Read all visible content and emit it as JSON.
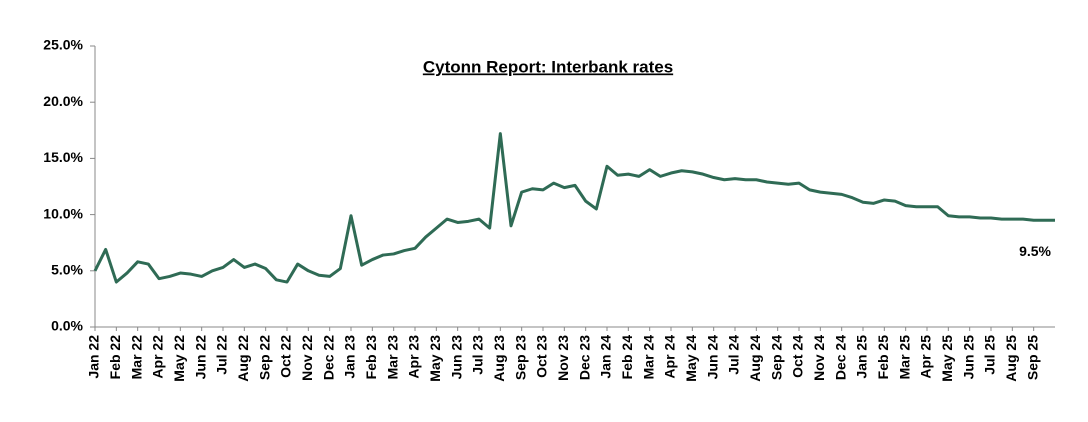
{
  "chart_data": {
    "type": "line",
    "title": "Cytonn Report: Interbank rates",
    "categories": [
      "Jan 22",
      null,
      "Feb 22",
      null,
      "Mar 22",
      null,
      "Apr 22",
      null,
      "May 22",
      null,
      "Jun 22",
      null,
      "Jul 22",
      null,
      "Aug 22",
      null,
      "Sep 22",
      null,
      "Oct 22",
      null,
      "Nov 22",
      null,
      "Dec 22",
      null,
      "Jan 23",
      null,
      "Feb 23",
      null,
      "Mar 23",
      null,
      "Apr 23",
      null,
      "May 23",
      null,
      "Jun 23",
      null,
      "Jul 23",
      null,
      "Aug 23",
      null,
      "Sep 23",
      null,
      "Oct 23",
      null,
      "Nov 23",
      null,
      "Dec 23",
      null,
      "Jan 24",
      null,
      "Feb 24",
      null,
      "Mar 24",
      null,
      "Apr 24",
      null,
      "May 24",
      null,
      "Jun 24",
      null,
      "Jul 24",
      null,
      "Aug 24",
      null,
      "Sep 24",
      null,
      "Oct 24",
      null,
      "Nov 24",
      null,
      "Dec 24",
      null,
      "Jan 25",
      null,
      "Feb 25",
      null,
      "Mar 25",
      null,
      "Apr 25",
      null,
      "May 25",
      null,
      "Jun 25",
      null,
      "Jul 25",
      null,
      "Aug 25",
      null,
      "Sep 25",
      null,
      null
    ],
    "series": [
      {
        "name": "Interbank rate",
        "color": "#2f6b55",
        "values": [
          5.0,
          6.9,
          4.0,
          4.8,
          5.8,
          5.6,
          4.3,
          4.5,
          4.8,
          4.7,
          4.5,
          5.0,
          5.3,
          6.0,
          5.3,
          5.6,
          5.2,
          4.2,
          4.0,
          5.6,
          5.0,
          4.6,
          4.5,
          5.2,
          9.9,
          5.5,
          6.0,
          6.4,
          6.5,
          6.8,
          7.0,
          8.0,
          8.8,
          9.6,
          9.3,
          9.4,
          9.6,
          8.8,
          17.2,
          9.0,
          12.0,
          12.3,
          12.2,
          12.8,
          12.4,
          12.6,
          11.2,
          10.5,
          14.3,
          13.5,
          13.6,
          13.4,
          14.0,
          13.4,
          13.7,
          13.9,
          13.8,
          13.6,
          13.3,
          13.1,
          13.2,
          13.1,
          13.1,
          12.9,
          12.8,
          12.7,
          12.8,
          12.2,
          12.0,
          11.9,
          11.8,
          11.5,
          11.1,
          11.0,
          11.3,
          11.2,
          10.8,
          10.7,
          10.7,
          10.7,
          9.9,
          9.8,
          9.8,
          9.7,
          9.7,
          9.6,
          9.6,
          9.6,
          9.5,
          9.5,
          9.5
        ],
        "value_labels": [
          null,
          null,
          null,
          null,
          null,
          null,
          null,
          null,
          null,
          null,
          null,
          null,
          null,
          null,
          null,
          null,
          null,
          null,
          null,
          null,
          null,
          null,
          null,
          null,
          null,
          null,
          null,
          null,
          null,
          null,
          null,
          null,
          null,
          null,
          null,
          null,
          null,
          null,
          null,
          null,
          null,
          null,
          null,
          null,
          null,
          null,
          null,
          null,
          null,
          null,
          null,
          null,
          null,
          null,
          null,
          null,
          null,
          null,
          null,
          null,
          null,
          null,
          null,
          null,
          null,
          null,
          null,
          null,
          null,
          null,
          null,
          null,
          null,
          null,
          null,
          null,
          null,
          null,
          null,
          null,
          null,
          null,
          null,
          null,
          null,
          null,
          null,
          null,
          null,
          null,
          "9.5%"
        ]
      }
    ],
    "ylim": [
      0,
      25
    ],
    "yticks": [
      {
        "value": 0,
        "label": "0.0%"
      },
      {
        "value": 5,
        "label": "5.0%"
      },
      {
        "value": 10,
        "label": "10.0%"
      },
      {
        "value": 15,
        "label": "15.0%"
      },
      {
        "value": 20,
        "label": "20.0%"
      },
      {
        "value": 25,
        "label": "25.0%"
      }
    ],
    "grid": false
  }
}
